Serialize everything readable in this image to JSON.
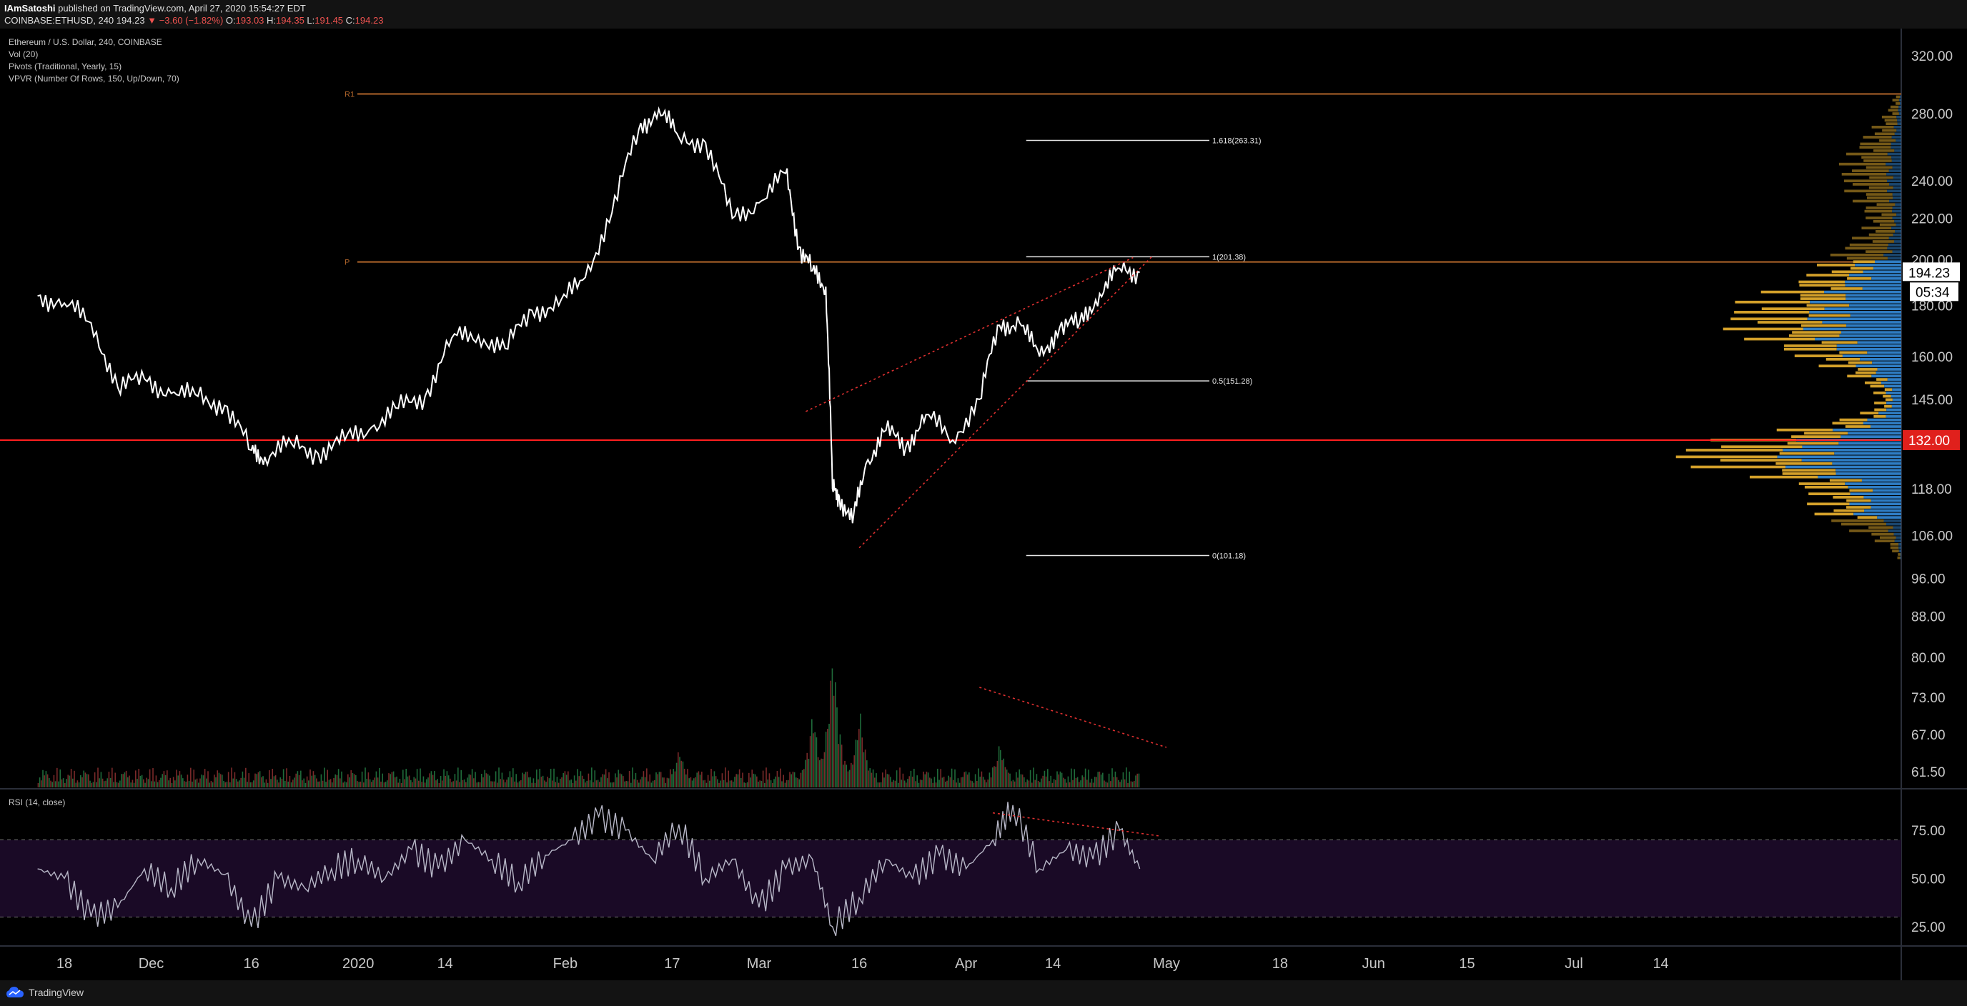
{
  "header": {
    "author": "IAmSatoshi",
    "published": "published on TradingView.com, April 27, 2020 15:54:27 EDT",
    "symbol": "COINBASE:ETHUSD, 240",
    "last": "194.23",
    "change": "▼ −3.60 (−1.82%)",
    "o_label": "O:",
    "o_value": "193.03",
    "h_label": "H:",
    "h_value": "194.35",
    "l_label": "L:",
    "l_value": "191.45",
    "c_label": "C:",
    "c_value": "194.23"
  },
  "legend": {
    "title": "Ethereum / U.S. Dollar, 240, COINBASE",
    "vol": "Vol (20)",
    "pivots": "Pivots (Traditional, Yearly, 15)",
    "vpvr": "VPVR (Number Of Rows, 150, Up/Down, 70)",
    "rsi": "RSI (14, close)"
  },
  "footer": {
    "brand": "TradingView"
  },
  "colors": {
    "background": "#000000",
    "price": "#ffffff",
    "horizontal_line": "#ff1f1f",
    "pivot": "#b0652a",
    "vpvr_up": "#2f7dc4",
    "vpvr_down": "#d3a02a",
    "rsi_band": "#1a0a26",
    "trendline": "#e03030"
  },
  "chart_data": [
    {
      "type": "line",
      "name": "price",
      "x_dates": [
        "2019-11-14",
        "2019-11-18",
        "2019-11-22",
        "2019-11-26",
        "2019-11-30",
        "2019-12-04",
        "2019-12-08",
        "2019-12-12",
        "2019-12-16",
        "2019-12-18",
        "2019-12-22",
        "2019-12-26",
        "2019-12-30",
        "2020-01-03",
        "2020-01-07",
        "2020-01-11",
        "2020-01-15",
        "2020-01-19",
        "2020-01-23",
        "2020-01-27",
        "2020-01-31",
        "2020-02-04",
        "2020-02-08",
        "2020-02-12",
        "2020-02-15",
        "2020-02-18",
        "2020-02-22",
        "2020-02-26",
        "2020-03-01",
        "2020-03-05",
        "2020-03-07",
        "2020-03-09",
        "2020-03-11",
        "2020-03-12",
        "2020-03-13",
        "2020-03-15",
        "2020-03-17",
        "2020-03-20",
        "2020-03-23",
        "2020-03-26",
        "2020-03-30",
        "2020-04-03",
        "2020-04-06",
        "2020-04-09",
        "2020-04-12",
        "2020-04-15",
        "2020-04-18",
        "2020-04-21",
        "2020-04-24",
        "2020-04-27"
      ],
      "values": [
        184,
        181,
        173,
        149,
        152,
        147,
        146,
        143,
        129,
        127,
        131,
        128,
        132,
        136,
        142,
        146,
        167,
        168,
        163,
        178,
        180,
        192,
        223,
        270,
        283,
        265,
        262,
        220,
        228,
        244,
        206,
        195,
        188,
        118,
        116,
        109,
        125,
        135,
        130,
        140,
        132,
        145,
        172,
        173,
        160,
        171,
        173,
        185,
        196,
        194.23
      ],
      "ylim": [
        61.5,
        320
      ],
      "scale": "log"
    },
    {
      "type": "bar",
      "name": "volume",
      "peaks": [
        [
          "2020-03-12",
          1.0
        ],
        [
          "2020-03-09",
          0.55
        ],
        [
          "2020-03-16",
          0.55
        ],
        [
          "2020-04-06",
          0.32
        ],
        [
          "2020-02-18",
          0.28
        ]
      ]
    },
    {
      "type": "line",
      "name": "RSI",
      "title": "RSI (14, close)",
      "x_dates": [
        "2019-11-14",
        "2019-11-18",
        "2019-11-22",
        "2019-11-26",
        "2019-11-30",
        "2019-12-04",
        "2019-12-08",
        "2019-12-12",
        "2019-12-16",
        "2019-12-20",
        "2019-12-24",
        "2019-12-28",
        "2020-01-01",
        "2020-01-05",
        "2020-01-09",
        "2020-01-13",
        "2020-01-17",
        "2020-01-21",
        "2020-01-25",
        "2020-01-29",
        "2020-02-02",
        "2020-02-06",
        "2020-02-10",
        "2020-02-14",
        "2020-02-18",
        "2020-02-22",
        "2020-02-26",
        "2020-03-01",
        "2020-03-05",
        "2020-03-09",
        "2020-03-12",
        "2020-03-16",
        "2020-03-20",
        "2020-03-24",
        "2020-03-28",
        "2020-04-01",
        "2020-04-05",
        "2020-04-08",
        "2020-04-12",
        "2020-04-16",
        "2020-04-20",
        "2020-04-24",
        "2020-04-27"
      ],
      "values": [
        55,
        50,
        30,
        35,
        55,
        45,
        60,
        52,
        25,
        50,
        45,
        55,
        60,
        50,
        65,
        55,
        70,
        60,
        48,
        62,
        70,
        82,
        75,
        60,
        78,
        50,
        60,
        35,
        55,
        60,
        25,
        40,
        60,
        50,
        62,
        55,
        70,
        88,
        55,
        65,
        60,
        75,
        55
      ],
      "levels": [
        70,
        30
      ],
      "ylim": [
        15,
        95
      ],
      "ticks": [
        "75.00",
        "50.00",
        "25.00"
      ]
    }
  ],
  "price_axis": {
    "ticks": [
      "320.00",
      "280.00",
      "240.00",
      "220.00",
      "200.00",
      "180.00",
      "160.00",
      "145.00",
      "132.00",
      "118.00",
      "106.00",
      "96.00",
      "88.00",
      "80.00",
      "73.00",
      "67.00",
      "61.50"
    ],
    "last_price": "194.23",
    "countdown": "05:34",
    "level_badge": "132.00"
  },
  "pivots": [
    {
      "label": "R1",
      "value": 293
    },
    {
      "label": "P",
      "value": 199
    }
  ],
  "horizontal_line": 132,
  "fibonacci": [
    {
      "label": "1.618(263.31)",
      "value": 263.31
    },
    {
      "label": "1(201.38)",
      "value": 201.38
    },
    {
      "label": "0.5(151.28)",
      "value": 151.28
    },
    {
      "label": "0(101.18)",
      "value": 101.18
    }
  ],
  "time_axis": [
    "18",
    "Dec",
    "16",
    "2020",
    "14",
    "Feb",
    "17",
    "Mar",
    "16",
    "Apr",
    "14",
    "May",
    "18",
    "Jun",
    "15",
    "Jul",
    "14"
  ],
  "time_axis_dates": [
    "2019-11-18",
    "2019-12-01",
    "2019-12-16",
    "2020-01-01",
    "2020-01-14",
    "2020-02-01",
    "2020-02-17",
    "2020-03-01",
    "2020-03-16",
    "2020-04-01",
    "2020-04-14",
    "2020-05-01",
    "2020-05-18",
    "2020-06-01",
    "2020-06-15",
    "2020-07-01",
    "2020-07-14"
  ]
}
